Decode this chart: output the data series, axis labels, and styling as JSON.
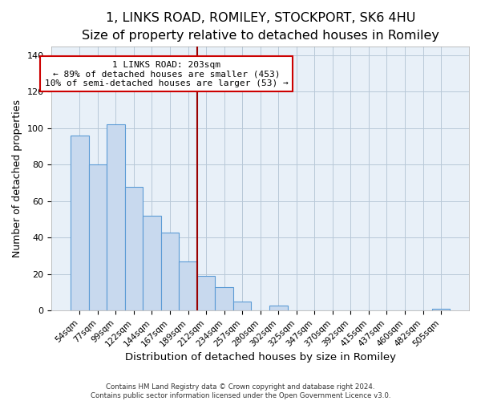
{
  "title": "1, LINKS ROAD, ROMILEY, STOCKPORT, SK6 4HU",
  "subtitle": "Size of property relative to detached houses in Romiley",
  "xlabel": "Distribution of detached houses by size in Romiley",
  "ylabel": "Number of detached properties",
  "bar_labels": [
    "54sqm",
    "77sqm",
    "99sqm",
    "122sqm",
    "144sqm",
    "167sqm",
    "189sqm",
    "212sqm",
    "234sqm",
    "257sqm",
    "280sqm",
    "302sqm",
    "325sqm",
    "347sqm",
    "370sqm",
    "392sqm",
    "415sqm",
    "437sqm",
    "460sqm",
    "482sqm",
    "505sqm"
  ],
  "bar_values": [
    96,
    80,
    102,
    68,
    52,
    43,
    27,
    19,
    13,
    5,
    0,
    3,
    0,
    0,
    0,
    0,
    0,
    0,
    0,
    0,
    1
  ],
  "bar_color": "#c8d9ee",
  "bar_edge_color": "#5b9bd5",
  "vline_x": 6.5,
  "vline_color": "#990000",
  "annotation_title": "1 LINKS ROAD: 203sqm",
  "annotation_line1": "← 89% of detached houses are smaller (453)",
  "annotation_line2": "10% of semi-detached houses are larger (53) →",
  "annotation_box_color": "#ffffff",
  "annotation_box_edge": "#cc0000",
  "ylim": [
    0,
    145
  ],
  "yticks": [
    0,
    20,
    40,
    60,
    80,
    100,
    120,
    140
  ],
  "footer1": "Contains HM Land Registry data © Crown copyright and database right 2024.",
  "footer2": "Contains public sector information licensed under the Open Government Licence v3.0.",
  "title_fontsize": 11.5,
  "subtitle_fontsize": 10,
  "xlabel_fontsize": 9.5,
  "ylabel_fontsize": 9,
  "tick_fontsize": 7.5,
  "footer_fontsize": 6.2
}
